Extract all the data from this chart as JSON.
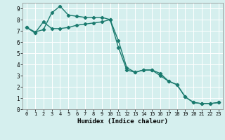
{
  "title": "",
  "xlabel": "Humidex (Indice chaleur)",
  "ylabel": "",
  "bg_color": "#d5efee",
  "line_color": "#1a7a6e",
  "grid_color": "#ffffff",
  "xlim": [
    -0.5,
    23.5
  ],
  "ylim": [
    0,
    9.5
  ],
  "xticks": [
    0,
    1,
    2,
    3,
    4,
    5,
    6,
    7,
    8,
    9,
    10,
    11,
    12,
    13,
    14,
    15,
    16,
    17,
    18,
    19,
    20,
    21,
    22,
    23
  ],
  "yticks": [
    0,
    1,
    2,
    3,
    4,
    5,
    6,
    7,
    8,
    9
  ],
  "series1_x": [
    0,
    1,
    2,
    3,
    4,
    5,
    6,
    7,
    8,
    9,
    10,
    11,
    12,
    13,
    14,
    15,
    16,
    17,
    18,
    19,
    20,
    21,
    22,
    23
  ],
  "series1_y": [
    7.3,
    6.9,
    7.1,
    8.6,
    9.2,
    8.4,
    8.3,
    8.2,
    8.2,
    8.2,
    8.0,
    6.1,
    3.7,
    3.3,
    3.5,
    3.5,
    3.0,
    2.5,
    2.2,
    1.1,
    0.6,
    0.5,
    0.5,
    0.6
  ],
  "series2_x": [
    0,
    1,
    2,
    3,
    4,
    5,
    6,
    7,
    8,
    9,
    10,
    11,
    12,
    13,
    14,
    15,
    16,
    17,
    18,
    19,
    20,
    21,
    22,
    23
  ],
  "series2_y": [
    7.3,
    6.8,
    7.8,
    7.2,
    7.2,
    7.3,
    7.5,
    7.6,
    7.7,
    7.8,
    8.0,
    5.5,
    3.5,
    3.3,
    3.5,
    3.5,
    3.2,
    2.5,
    2.2,
    1.1,
    0.6,
    0.5,
    0.5,
    0.6
  ],
  "marker": "D",
  "marker_size": 2.2,
  "line_width": 1.0,
  "xlabel_fontsize": 6.5,
  "tick_fontsize_x": 5.0,
  "tick_fontsize_y": 5.5
}
